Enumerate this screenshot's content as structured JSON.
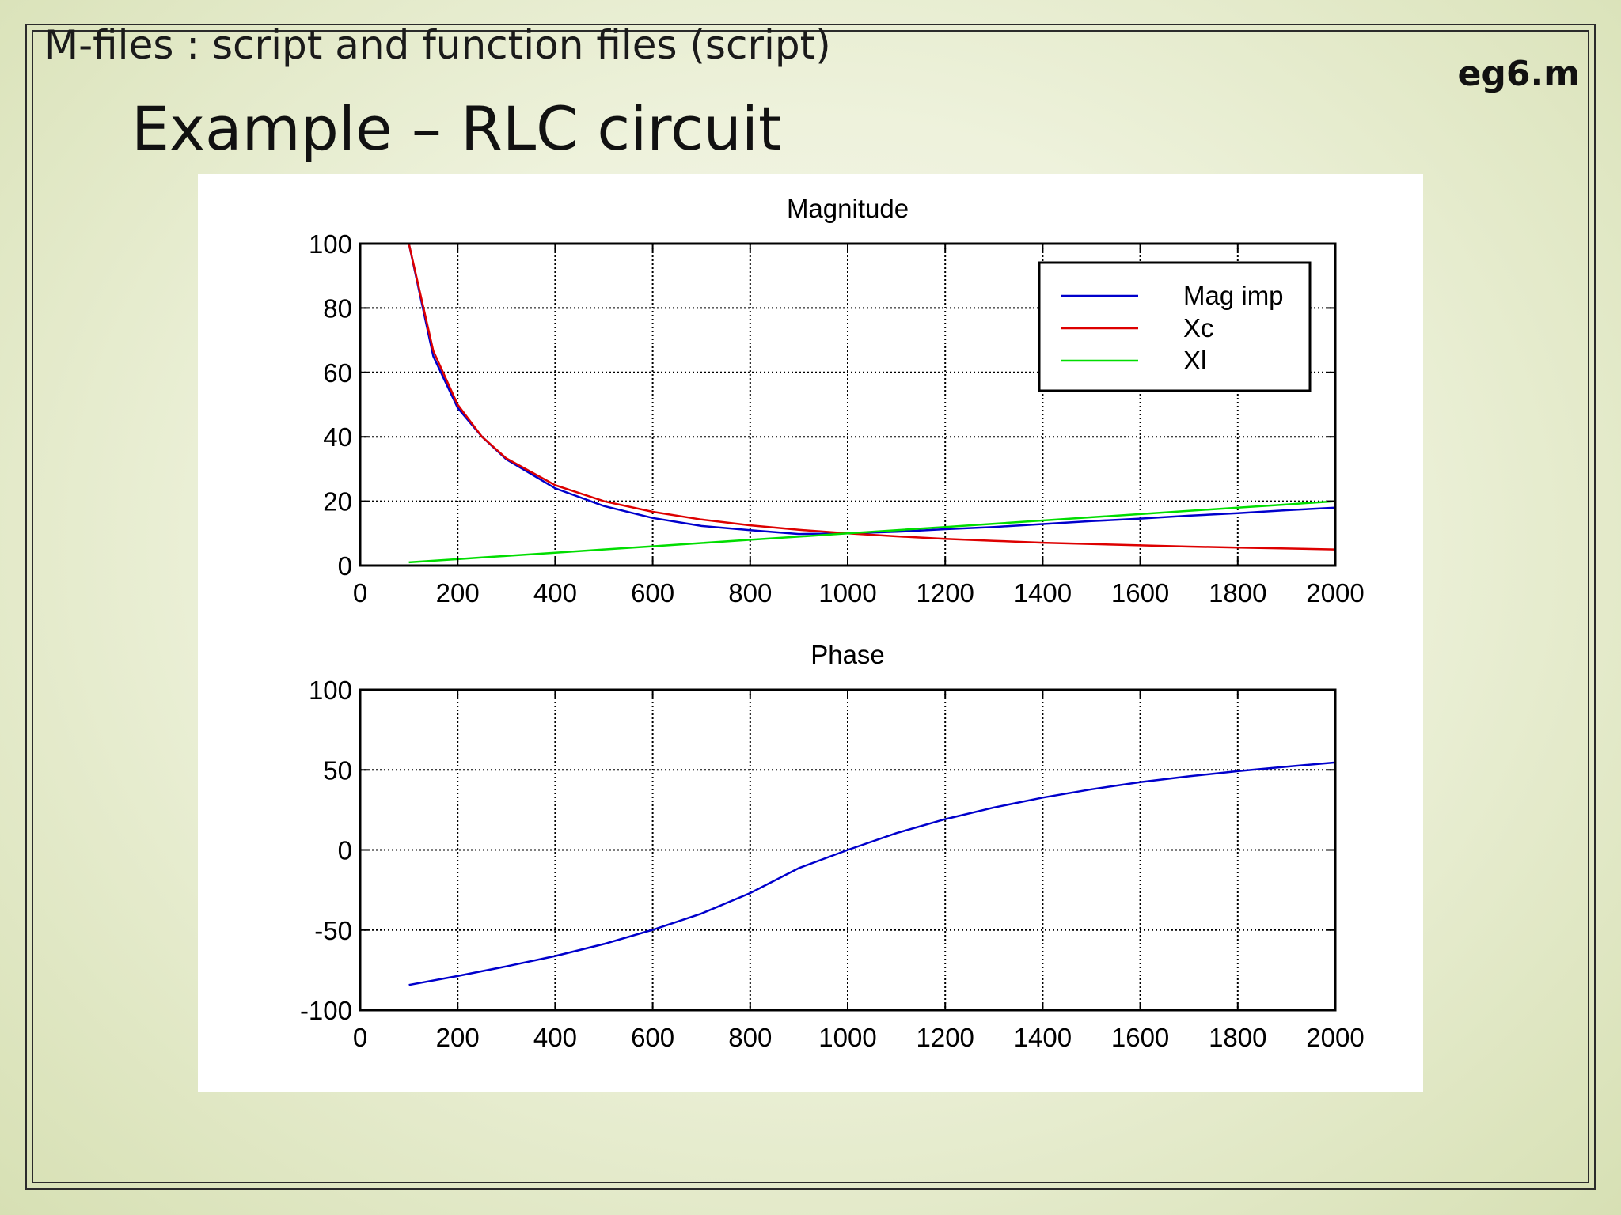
{
  "slide": {
    "subtitle": "M-files : script and function files (script)",
    "file_tag": "eg6.m",
    "title": "Example – RLC circuit"
  },
  "colors": {
    "mag_imp": "#0000cc",
    "xc": "#dd0000",
    "xl": "#00dd00",
    "phase": "#0000cc"
  },
  "chart_data": [
    {
      "type": "line",
      "title": "Magnitude",
      "xlabel": "",
      "ylabel": "",
      "xlim": [
        0,
        2000
      ],
      "ylim": [
        0,
        100
      ],
      "xticks": [
        0,
        200,
        400,
        600,
        800,
        1000,
        1200,
        1400,
        1600,
        1800,
        2000
      ],
      "yticks": [
        0,
        20,
        40,
        60,
        80,
        100
      ],
      "grid": true,
      "legend_position": "top-right",
      "x": [
        100,
        150,
        200,
        250,
        300,
        400,
        500,
        600,
        700,
        800,
        900,
        1000,
        1100,
        1200,
        1300,
        1400,
        1500,
        1600,
        1700,
        1800,
        1900,
        2000
      ],
      "series": [
        {
          "name": "Mag imp",
          "values": [
            100,
            65,
            49,
            40,
            33,
            24,
            18.5,
            14.8,
            12.3,
            11,
            9.8,
            10,
            10.5,
            11.3,
            12,
            12.9,
            13.8,
            14.6,
            15.5,
            16.3,
            17.2,
            18
          ]
        },
        {
          "name": "Xc",
          "values": [
            100,
            66.7,
            50,
            40,
            33.3,
            25,
            20,
            16.7,
            14.3,
            12.5,
            11.1,
            10,
            9.1,
            8.3,
            7.7,
            7.1,
            6.7,
            6.3,
            5.9,
            5.6,
            5.3,
            5
          ]
        },
        {
          "name": "Xl",
          "values": [
            1,
            1.5,
            2,
            2.5,
            3,
            4,
            5,
            6,
            7,
            8,
            9,
            10,
            11,
            12,
            13,
            14,
            15,
            16,
            17,
            18,
            19,
            20
          ]
        }
      ]
    },
    {
      "type": "line",
      "title": "Phase",
      "xlabel": "",
      "ylabel": "",
      "xlim": [
        0,
        2000
      ],
      "ylim": [
        -100,
        100
      ],
      "xticks": [
        0,
        200,
        400,
        600,
        800,
        1000,
        1200,
        1400,
        1600,
        1800,
        2000
      ],
      "yticks": [
        -100,
        -50,
        0,
        50,
        100
      ],
      "grid": true,
      "x": [
        100,
        200,
        300,
        400,
        500,
        600,
        700,
        800,
        900,
        1000,
        1100,
        1200,
        1300,
        1400,
        1500,
        1600,
        1700,
        1800,
        1900,
        2000
      ],
      "series": [
        {
          "name": "",
          "values": [
            -84.3,
            -78.7,
            -72.7,
            -66.2,
            -58.7,
            -49.9,
            -39.7,
            -26.9,
            -11.3,
            0,
            10.5,
            19.2,
            26.5,
            32.7,
            37.9,
            42.3,
            46,
            49.2,
            52,
            54.6
          ]
        }
      ]
    }
  ]
}
